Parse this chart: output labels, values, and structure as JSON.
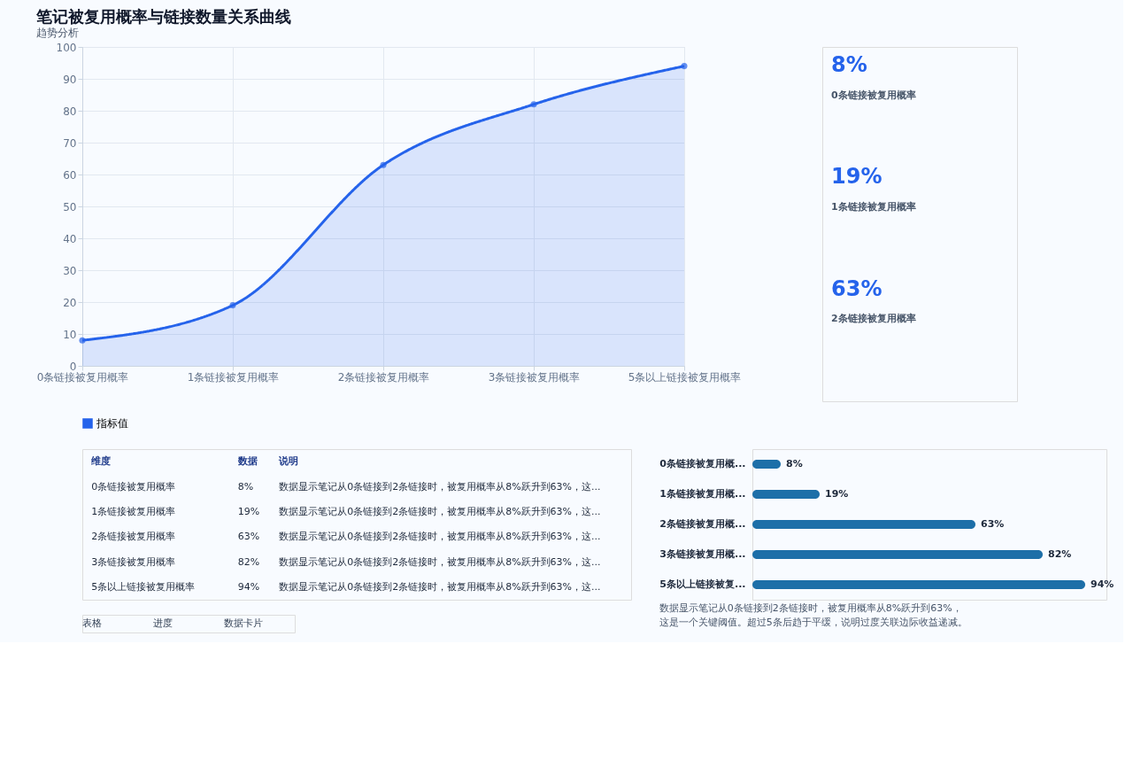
{
  "chart_data": [
    {
      "type": "area",
      "title": "笔记被复用概率与链接数量关系曲线",
      "subtitle": "趋势分析",
      "categories": [
        "0条链接被复用概率",
        "1条链接被复用概率",
        "2条链接被复用概率",
        "3条链接被复用概率",
        "5条以上链接被复用概率"
      ],
      "series": [
        {
          "name": "指标值",
          "color": "#2563eb",
          "values": [
            8,
            19,
            63,
            82,
            94
          ]
        }
      ],
      "ylim": [
        0,
        100
      ],
      "yticks": [
        0,
        10,
        20,
        30,
        40,
        50,
        60,
        70,
        80,
        90,
        100
      ],
      "grid": true,
      "legend": "bottom",
      "marker": "circle",
      "line_style": "solid"
    },
    {
      "type": "other",
      "annotations": [
        "8%",
        "0条链接被复用概率",
        "19%",
        "1条链接被复用概率",
        "63%",
        "2条链接被复用概率"
      ]
    },
    {
      "type": "other",
      "annotations": [
        "维度",
        "数据",
        "说明",
        "0条链接被复用概率",
        "8%",
        "数据显示笔记从0条链接到2条链接时，被复用概率从8%跃升到63%，这...",
        "1条链接被复用概率",
        "19%",
        "数据显示笔记从0条链接到2条链接时，被复用概率从8%跃升到63%，这...",
        "2条链接被复用概率",
        "63%",
        "数据显示笔记从0条链接到2条链接时，被复用概率从8%跃升到63%，这...",
        "3条链接被复用概率",
        "82%",
        "数据显示笔记从0条链接到2条链接时，被复用概率从8%跃升到63%，这...",
        "5条以上链接被复用概率",
        "94%",
        "数据显示笔记从0条链接到2条链接时，被复用概率从8%跃升到63%，这..."
      ]
    },
    {
      "type": "bar",
      "orientation": "horizontal",
      "categories": [
        "0条链接被复用概...",
        "1条链接被复用概...",
        "2条链接被复用概...",
        "3条链接被复用概...",
        "5条以上链接被复..."
      ],
      "values": [
        8,
        19,
        63,
        82,
        94
      ],
      "color": "#1d6fa8",
      "xlim": [
        0,
        100
      ],
      "tick_labels": false,
      "value_labels": [
        "8%",
        "19%",
        "63%",
        "82%",
        "94%"
      ],
      "annotations": [
        "数据显示笔记从0条链接到2条链接时，被复用概率从8%跃升到63%，这是一个关键阈值。超过5条后趋于平缓，说明过度关联边际收益递减。"
      ]
    },
    {
      "type": "other",
      "annotations": [
        "表格",
        "进度",
        "数据卡片"
      ]
    }
  ]
}
